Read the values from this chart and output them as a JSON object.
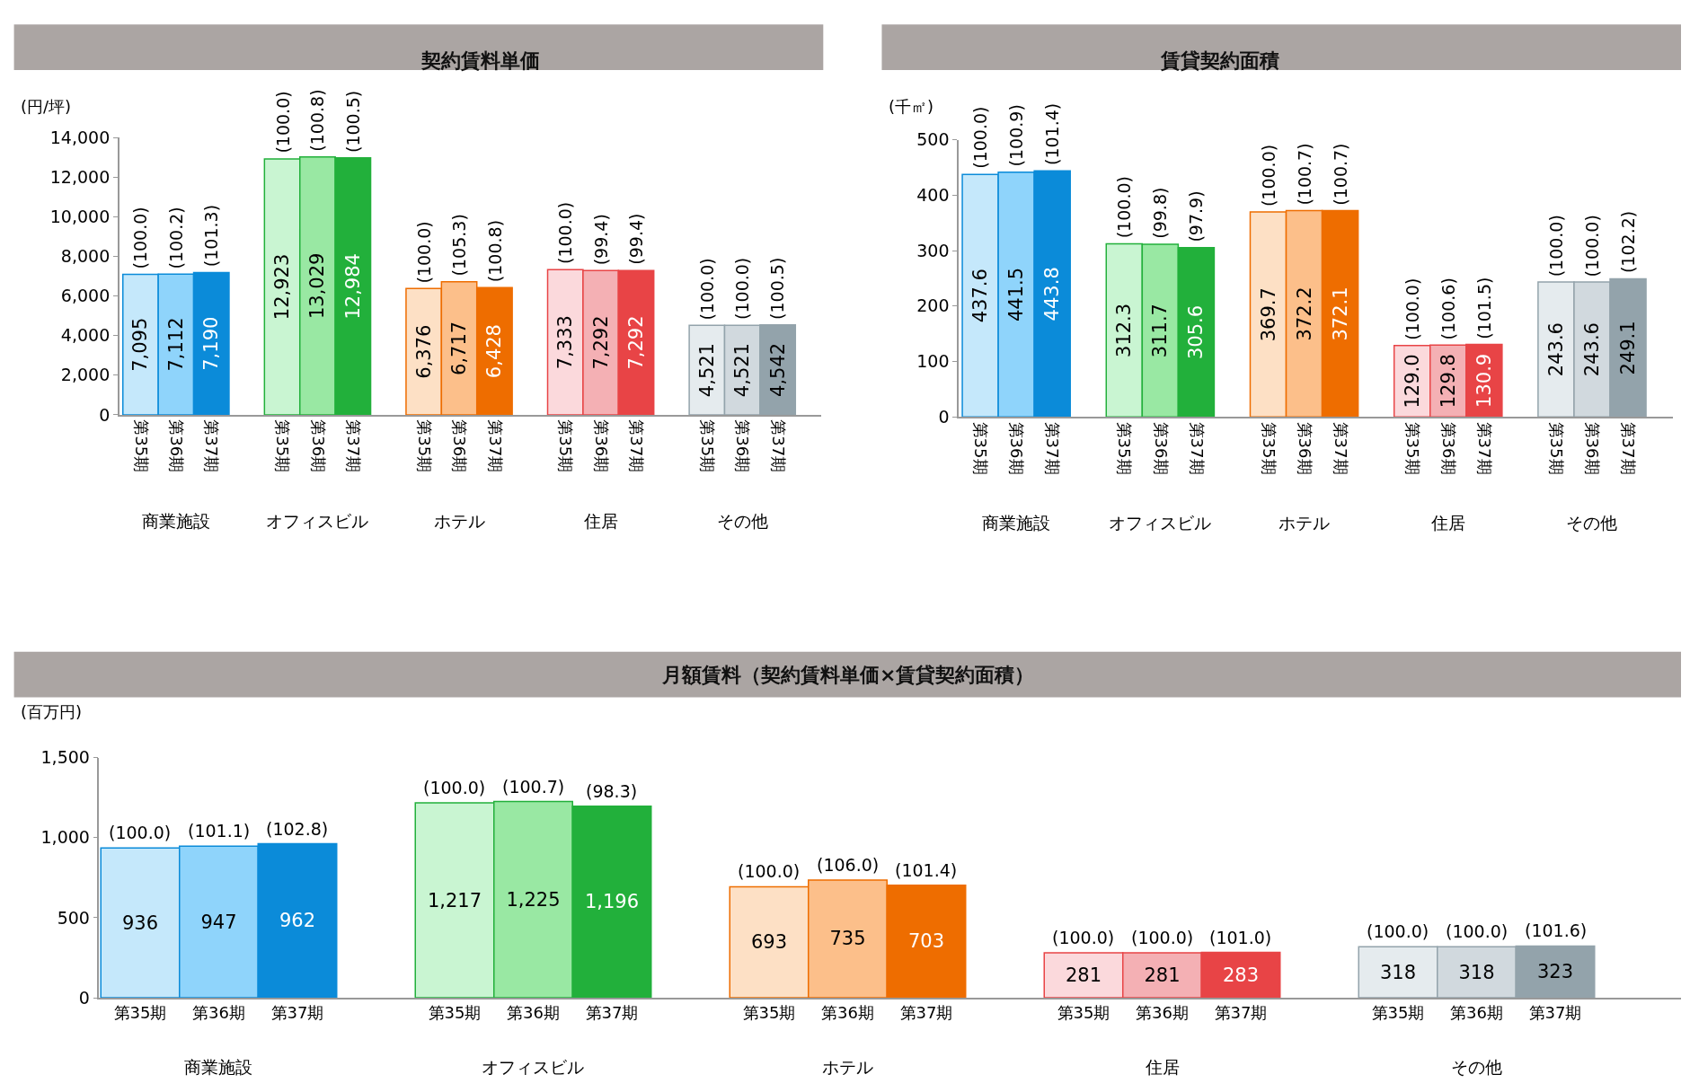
{
  "chart_data": [
    {
      "type": "bar",
      "title": "契約賃料単価",
      "ylabel": "(円/坪)",
      "categories": [
        "商業施設",
        "オフィスビル",
        "ホテル",
        "住居",
        "その他"
      ],
      "ylim": [
        0,
        14000
      ],
      "yticks": [
        {
          "value": 0,
          "label": "0"
        },
        {
          "value": 2000,
          "label": "2,000"
        },
        {
          "value": 4000,
          "label": "4,000"
        },
        {
          "value": 6000,
          "label": "6,000"
        },
        {
          "value": 8000,
          "label": "8,000"
        },
        {
          "value": 10000,
          "label": "10,000"
        },
        {
          "value": 12000,
          "label": "12,000"
        },
        {
          "value": 14000,
          "label": "14,000"
        }
      ],
      "series": [
        {
          "name": "第35期",
          "colors": [
            "#c5e8fb",
            "#c9f5d2",
            "#fde0c5",
            "#fbd9dc",
            "#e5ebee"
          ],
          "values": [
            7095,
            12923,
            6376,
            7333,
            4521
          ],
          "value_labels": [
            "7,095",
            "12,923",
            "6,376",
            "7,333",
            "4,521"
          ]
        },
        {
          "name": "第36期",
          "colors": [
            "#8fd4fb",
            "#99e8a3",
            "#fcbf8a",
            "#f4b0b4",
            "#d1d9de"
          ],
          "values": [
            7112,
            13029,
            6717,
            7292,
            4521
          ],
          "value_labels": [
            "7,112",
            "13,029",
            "6,717",
            "7,292",
            "4,521"
          ]
        },
        {
          "name": "第37期",
          "colors": [
            "#0b8bd9",
            "#22b03b",
            "#ee6d00",
            "#e84446",
            "#93a3ab"
          ],
          "values": [
            7190,
            12984,
            6428,
            7292,
            4542
          ],
          "value_labels": [
            "7,190",
            "12,984",
            "6,428",
            "7,292",
            "4,542"
          ]
        }
      ],
      "annotations": [
        "(100.0)",
        "(100.2)",
        "(101.3)",
        "(100.0)",
        "(100.8)",
        "(100.5)",
        "(100.0)",
        "(105.3)",
        "(100.8)",
        "(100.0)",
        "(99.4)",
        "(99.4)",
        "(100.0)",
        "(100.0)",
        "(100.5)"
      ]
    },
    {
      "type": "bar",
      "title": "賃貸契約面積",
      "ylabel": "(千㎡)",
      "categories": [
        "商業施設",
        "オフィスビル",
        "ホテル",
        "住居",
        "その他"
      ],
      "ylim": [
        0,
        500
      ],
      "yticks": [
        0,
        100,
        200,
        300,
        400,
        500
      ],
      "series": [
        {
          "name": "第35期",
          "colors": [
            "#c5e8fb",
            "#c9f5d2",
            "#fde0c5",
            "#fbd9dc",
            "#e5ebee"
          ],
          "values": [
            437.6,
            312.3,
            369.7,
            129.0,
            243.6
          ],
          "value_labels": [
            "437.6",
            "312.3",
            "369.7",
            "129.0",
            "243.6"
          ]
        },
        {
          "name": "第36期",
          "colors": [
            "#8fd4fb",
            "#99e8a3",
            "#fcbf8a",
            "#f4b0b4",
            "#d1d9de"
          ],
          "values": [
            441.5,
            311.7,
            372.2,
            129.8,
            243.6
          ],
          "value_labels": [
            "441.5",
            "311.7",
            "372.2",
            "129.8",
            "243.6"
          ]
        },
        {
          "name": "第37期",
          "colors": [
            "#0b8bd9",
            "#22b03b",
            "#ee6d00",
            "#e84446",
            "#93a3ab"
          ],
          "values": [
            443.8,
            305.6,
            372.1,
            130.9,
            249.1
          ],
          "value_labels": [
            "443.8",
            "305.6",
            "372.1",
            "130.9",
            "249.1"
          ]
        }
      ],
      "annotations": [
        "(100.0)",
        "(100.9)",
        "(101.4)",
        "(100.0)",
        "(99.8)",
        "(97.9)",
        "(100.0)",
        "(100.7)",
        "(100.7)",
        "(100.0)",
        "(100.6)",
        "(101.5)",
        "(100.0)",
        "(100.0)",
        "(102.2)"
      ]
    },
    {
      "type": "bar",
      "title": "月額賃料（契約賃料単価×賃貸契約面積）",
      "ylabel": "(百万円)",
      "categories": [
        "商業施設",
        "オフィスビル",
        "ホテル",
        "住居",
        "その他"
      ],
      "ylim": [
        0,
        1500
      ],
      "yticks": [
        0,
        500,
        {
          "value": 1000,
          "label": "1,000"
        },
        {
          "value": 1500,
          "label": "1,500"
        }
      ],
      "series": [
        {
          "name": "第35期",
          "colors": [
            "#c5e8fb",
            "#c9f5d2",
            "#fde0c5",
            "#fbd9dc",
            "#e5ebee"
          ],
          "values": [
            936,
            1217,
            693,
            281,
            318
          ],
          "value_labels": [
            "936",
            "1,217",
            "693",
            "281",
            "318"
          ]
        },
        {
          "name": "第36期",
          "colors": [
            "#8fd4fb",
            "#99e8a3",
            "#fcbf8a",
            "#f4b0b4",
            "#d1d9de"
          ],
          "values": [
            947,
            1225,
            735,
            281,
            318
          ],
          "value_labels": [
            "947",
            "1,225",
            "735",
            "281",
            "318"
          ]
        },
        {
          "name": "第37期",
          "colors": [
            "#0b8bd9",
            "#22b03b",
            "#ee6d00",
            "#e84446",
            "#93a3ab"
          ],
          "values": [
            962,
            1196,
            703,
            283,
            323
          ],
          "value_labels": [
            "962",
            "1,196",
            "703",
            "283",
            "323"
          ]
        }
      ],
      "annotations": [
        "(100.0)",
        "(101.1)",
        "(102.8)",
        "(100.0)",
        "(100.7)",
        "(98.3)",
        "(100.0)",
        "(106.0)",
        "(101.4)",
        "(100.0)",
        "(100.0)",
        "(101.0)",
        "(100.0)",
        "(100.0)",
        "(101.6)"
      ]
    }
  ]
}
